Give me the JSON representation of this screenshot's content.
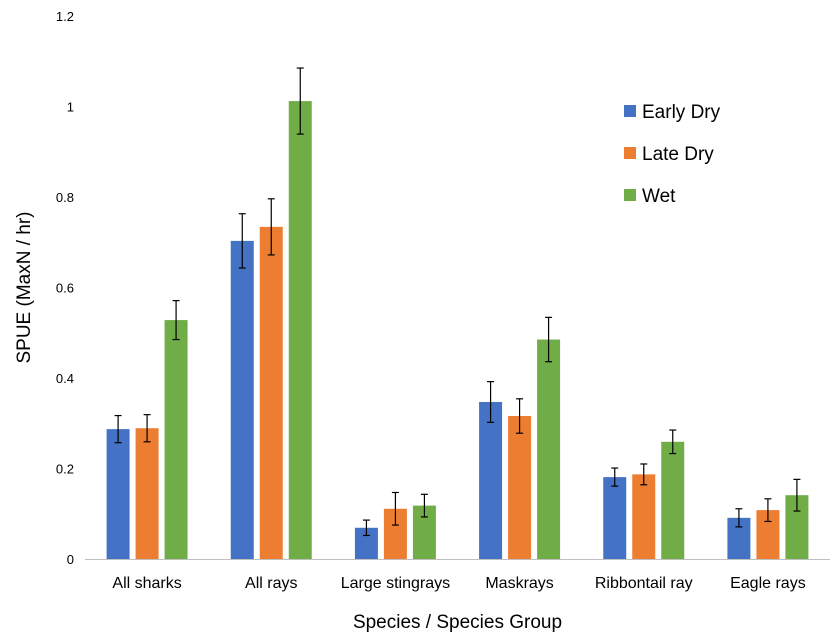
{
  "chart_data": {
    "type": "bar",
    "title": "",
    "xlabel": "Species / Species Group",
    "ylabel": "SPUE (MaxN / hr)",
    "ylim": [
      0,
      1.2
    ],
    "yticks": [
      "0",
      "0.2",
      "0.4",
      "0.6",
      "0.8",
      "1",
      "1.2"
    ],
    "grid": false,
    "legend_position": "top-right",
    "categories": [
      "All sharks",
      "All rays",
      "Large stingrays",
      "Maskrays",
      "Ribbontail ray",
      "Eagle rays"
    ],
    "series": [
      {
        "name": "Early Dry",
        "color": "#4472C4",
        "values": [
          0.287,
          0.703,
          0.069,
          0.347,
          0.181,
          0.091
        ],
        "error": [
          0.03,
          0.06,
          0.017,
          0.045,
          0.02,
          0.02
        ]
      },
      {
        "name": "Late Dry",
        "color": "#ED7D31",
        "values": [
          0.289,
          0.734,
          0.111,
          0.316,
          0.187,
          0.108
        ],
        "error": [
          0.03,
          0.062,
          0.036,
          0.038,
          0.023,
          0.025
        ]
      },
      {
        "name": "Wet",
        "color": "#70AD47",
        "values": [
          0.528,
          1.012,
          0.118,
          0.485,
          0.259,
          0.141
        ],
        "error": [
          0.043,
          0.073,
          0.025,
          0.049,
          0.026,
          0.035
        ]
      }
    ]
  }
}
